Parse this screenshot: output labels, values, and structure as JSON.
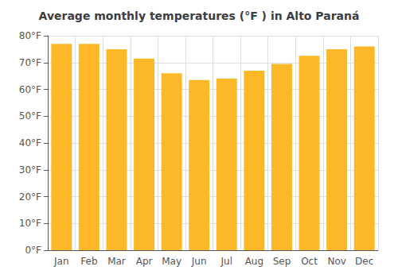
{
  "chart_data": {
    "type": "bar",
    "title": "Average monthly temperatures (°F ) in Alto Paraná",
    "categories": [
      "Jan",
      "Feb",
      "Mar",
      "Apr",
      "May",
      "Jun",
      "Jul",
      "Aug",
      "Sep",
      "Oct",
      "Nov",
      "Dec"
    ],
    "values": [
      77,
      77,
      75,
      71.5,
      66,
      63.5,
      64,
      67,
      69.5,
      72.5,
      75,
      76
    ],
    "color": "#FDB827",
    "ylim": [
      0,
      80
    ],
    "yticks": [
      {
        "value": 0,
        "label": "0°F"
      },
      {
        "value": 10,
        "label": "10°F"
      },
      {
        "value": 20,
        "label": "20°F"
      },
      {
        "value": 30,
        "label": "30°F"
      },
      {
        "value": 40,
        "label": "40°F"
      },
      {
        "value": 50,
        "label": "50°F"
      },
      {
        "value": 60,
        "label": "60°F"
      },
      {
        "value": 70,
        "label": "70°F"
      },
      {
        "value": 80,
        "label": "80°F"
      }
    ],
    "grid": true
  }
}
